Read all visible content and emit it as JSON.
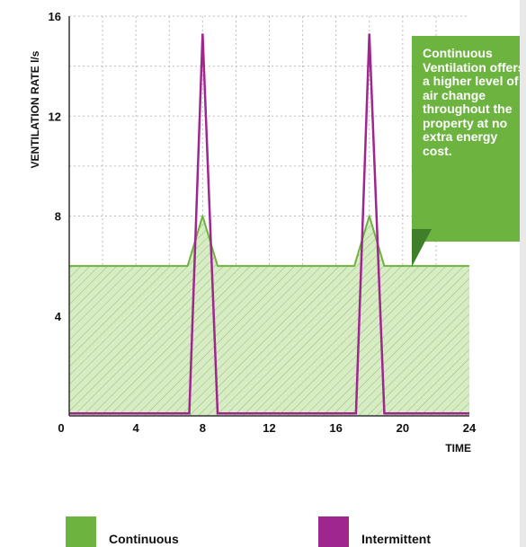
{
  "chart_data": {
    "type": "area",
    "title": "",
    "xlabel": "TIME",
    "ylabel": "VENTILATION RATE  l/s",
    "xlim": [
      0,
      24
    ],
    "ylim": [
      0,
      16
    ],
    "xticks": [
      "0",
      "4",
      "8",
      "12",
      "16",
      "20",
      "24"
    ],
    "yticks": [
      "4",
      "8",
      "12",
      "16"
    ],
    "grid": true,
    "legend_position": "bottom",
    "series": [
      {
        "name": "Continuous",
        "color": "#6db33f",
        "fill": "#d7ebc4",
        "x": [
          0,
          7.1,
          8,
          8.9,
          17.1,
          18,
          18.9,
          24
        ],
        "y": [
          6,
          6,
          8,
          6,
          6,
          8,
          6,
          6
        ]
      },
      {
        "name": "Intermittent",
        "color": "#a0268f",
        "x": [
          0,
          7.2,
          8,
          8.9,
          17.2,
          18,
          18.9,
          24
        ],
        "y": [
          0.1,
          0.1,
          15.3,
          0.1,
          0.1,
          15.3,
          0.1,
          0.1
        ]
      }
    ]
  },
  "callout": {
    "text": "Continuous Ventilation offers a higher level of air change throughout the property at no extra energy cost.",
    "color": "#6db33f"
  },
  "legend": [
    {
      "label": "Continuous",
      "color": "#6db33f"
    },
    {
      "label": "Intermittent",
      "color": "#a0268f"
    }
  ]
}
